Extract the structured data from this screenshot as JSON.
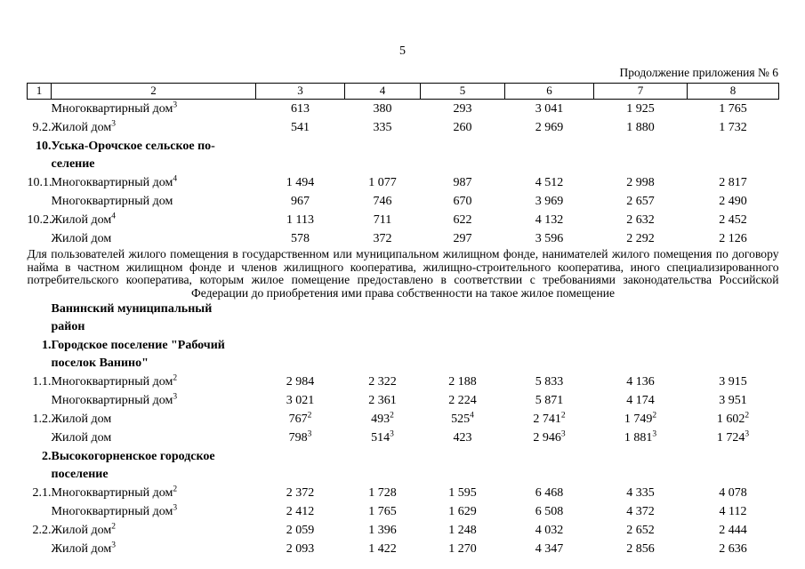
{
  "page": {
    "number": "5",
    "continuation": "Продолжение приложения № 6"
  },
  "paragraph": "Для пользователей жилого помещения в государственном или муниципальном жилищном фонде, нанимателей жилого помещения по договору найма в частном жилищном фонде и членов жилищного кооператива, жилищно-строительного кооператива, иного специализированного потребительского кооператива, которым жилое помещение предоставлено в соответствии с требованиями законодательства Российской Федерации до приобретения ими права собственности на такое жилое помещение",
  "table": {
    "header": [
      "1",
      "2",
      "3",
      "4",
      "5",
      "6",
      "7",
      "8"
    ],
    "upper_rows": [
      {
        "num": "",
        "section": false,
        "name": "Многоквартирный дом^3",
        "values": [
          "613",
          "380",
          "293",
          "3 041",
          "1 925",
          "1 765"
        ]
      },
      {
        "num": "9.2.",
        "section": false,
        "name": "Жилой дом^3",
        "values": [
          "541",
          "335",
          "260",
          "2 969",
          "1 880",
          "1 732"
        ]
      },
      {
        "num": "10.",
        "section": true,
        "name": "Уська-Орочское сельское по-\nселение",
        "values": []
      },
      {
        "num": "10.1.",
        "section": false,
        "name": "Многоквартирный дом^4",
        "values": [
          "1 494",
          "1 077",
          "987",
          "4 512",
          "2 998",
          "2 817"
        ]
      },
      {
        "num": "",
        "section": false,
        "name": "Многоквартирный дом",
        "values": [
          "967",
          "746",
          "670",
          "3 969",
          "2 657",
          "2 490"
        ]
      },
      {
        "num": "10.2.",
        "section": false,
        "name": "Жилой дом^4",
        "values": [
          "1 113",
          "711",
          "622",
          "4 132",
          "2 632",
          "2 452"
        ]
      },
      {
        "num": "",
        "section": false,
        "name": "Жилой дом",
        "values": [
          "578",
          "372",
          "297",
          "3 596",
          "2 292",
          "2 126"
        ]
      }
    ],
    "lower_rows": [
      {
        "num": "",
        "section": true,
        "name": "Ванинский муниципальный\nрайон",
        "values": []
      },
      {
        "num": "1.",
        "section": true,
        "name": "Городское поселение \"Рабочий\nпоселок Ванино\"",
        "values": []
      },
      {
        "num": "1.1.",
        "section": false,
        "name": "Многоквартирный дом^2",
        "values": [
          "2 984",
          "2 322",
          "2 188",
          "5 833",
          "4 136",
          "3 915"
        ]
      },
      {
        "num": "",
        "section": false,
        "name": "Многоквартирный дом^3",
        "values": [
          "3 021",
          "2 361",
          "2 224",
          "5 871",
          "4 174",
          "3 951"
        ]
      },
      {
        "num": "1.2.",
        "section": false,
        "name": "Жилой дом",
        "values": [
          "767^2",
          "493^2",
          "525^4",
          "2 741^2",
          "1 749^2",
          "1 602^2"
        ]
      },
      {
        "num": "",
        "section": false,
        "name": "Жилой дом",
        "values": [
          "798^3",
          "514^3",
          "423",
          "2 946^3",
          "1 881^3",
          "1 724^3"
        ]
      },
      {
        "num": "2.",
        "section": true,
        "name": "Высокогорненское городское\nпоселение",
        "values": []
      },
      {
        "num": "2.1.",
        "section": false,
        "name": "Многоквартирный дом^2",
        "values": [
          "2 372",
          "1 728",
          "1 595",
          "6 468",
          "4 335",
          "4 078"
        ]
      },
      {
        "num": "",
        "section": false,
        "name": "Многоквартирный дом^3",
        "values": [
          "2 412",
          "1 765",
          "1 629",
          "6 508",
          "4 372",
          "4 112"
        ]
      },
      {
        "num": "2.2.",
        "section": false,
        "name": "Жилой дом^2",
        "values": [
          "2 059",
          "1 396",
          "1 248",
          "4 032",
          "2 652",
          "2 444"
        ]
      },
      {
        "num": "",
        "section": false,
        "name": "Жилой дом^3",
        "values": [
          "2 093",
          "1 422",
          "1 270",
          "4 347",
          "2 856",
          "2 636"
        ]
      }
    ]
  }
}
